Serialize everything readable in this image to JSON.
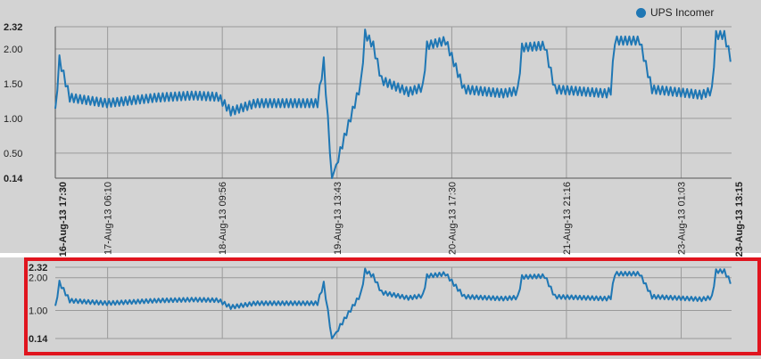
{
  "colors": {
    "series": "#1f77b4",
    "background": "#d3d3d3",
    "gridline": "#9a9a9a",
    "highlight": "#e0141e"
  },
  "legend": {
    "label": "UPS Incomer",
    "icon": "circle-icon"
  },
  "chart_data": [
    {
      "type": "line",
      "title": "",
      "xlabel": "",
      "ylabel": "",
      "ylim": [
        0.14,
        2.32
      ],
      "y_ticks": [
        {
          "value": 0.14,
          "label": "0.14",
          "bold": true
        },
        {
          "value": 0.5,
          "label": "0.50",
          "bold": false
        },
        {
          "value": 1.0,
          "label": "1.00",
          "bold": false
        },
        {
          "value": 1.5,
          "label": "1.50",
          "bold": false
        },
        {
          "value": 2.0,
          "label": "2.00",
          "bold": false
        },
        {
          "value": 2.32,
          "label": "2.32",
          "bold": true
        }
      ],
      "x_ticks": [
        {
          "label": "16-Aug-13 17:30",
          "bold": true
        },
        {
          "label": "17-Aug-13 06:10",
          "bold": false
        },
        {
          "label": "18-Aug-13 09:56",
          "bold": false
        },
        {
          "label": "19-Aug-13 13:43",
          "bold": false
        },
        {
          "label": "20-Aug-13 17:30",
          "bold": false
        },
        {
          "label": "21-Aug-13 21:16",
          "bold": false
        },
        {
          "label": "23-Aug-13 01:03",
          "bold": false
        },
        {
          "label": "23-Aug-13 13:15",
          "bold": true
        }
      ],
      "grid": true,
      "series": [
        {
          "name": "UPS Incomer",
          "points": [
            {
              "x": "16-Aug-13 17:30",
              "y": 1.08
            },
            {
              "x": "16-Aug-13 18:30",
              "y": 1.85
            },
            {
              "x": "16-Aug-13 21:00",
              "y": 1.3
            },
            {
              "x": "17-Aug-13 06:00",
              "y": 1.22
            },
            {
              "x": "17-Aug-13 18:00",
              "y": 1.3
            },
            {
              "x": "18-Aug-13 03:00",
              "y": 1.33
            },
            {
              "x": "18-Aug-13 09:00",
              "y": 1.31
            },
            {
              "x": "18-Aug-13 12:00",
              "y": 1.1
            },
            {
              "x": "18-Aug-13 18:00",
              "y": 1.22
            },
            {
              "x": "19-Aug-13 09:00",
              "y": 1.22
            },
            {
              "x": "19-Aug-13 10:30",
              "y": 1.82
            },
            {
              "x": "19-Aug-13 12:30",
              "y": 0.14
            },
            {
              "x": "19-Aug-13 19:30",
              "y": 1.5
            },
            {
              "x": "19-Aug-13 20:30",
              "y": 2.22
            },
            {
              "x": "19-Aug-13 22:30",
              "y": 2.05
            },
            {
              "x": "20-Aug-13 00:30",
              "y": 1.55
            },
            {
              "x": "20-Aug-13 07:00",
              "y": 1.38
            },
            {
              "x": "20-Aug-13 10:30",
              "y": 1.45
            },
            {
              "x": "20-Aug-13 11:30",
              "y": 2.05
            },
            {
              "x": "20-Aug-13 16:00",
              "y": 2.12
            },
            {
              "x": "20-Aug-13 20:30",
              "y": 1.42
            },
            {
              "x": "21-Aug-13 06:00",
              "y": 1.36
            },
            {
              "x": "21-Aug-13 09:30",
              "y": 1.4
            },
            {
              "x": "21-Aug-13 10:30",
              "y": 2.02
            },
            {
              "x": "21-Aug-13 16:00",
              "y": 2.05
            },
            {
              "x": "21-Aug-13 18:30",
              "y": 1.42
            },
            {
              "x": "22-Aug-13 07:00",
              "y": 1.36
            },
            {
              "x": "22-Aug-13 08:00",
              "y": 1.4
            },
            {
              "x": "22-Aug-13 09:00",
              "y": 2.12
            },
            {
              "x": "22-Aug-13 15:00",
              "y": 2.12
            },
            {
              "x": "22-Aug-13 18:00",
              "y": 1.42
            },
            {
              "x": "23-Aug-13 06:00",
              "y": 1.34
            },
            {
              "x": "23-Aug-13 08:30",
              "y": 1.4
            },
            {
              "x": "23-Aug-13 09:30",
              "y": 2.2
            },
            {
              "x": "23-Aug-13 11:30",
              "y": 2.2
            },
            {
              "x": "23-Aug-13 13:15",
              "y": 1.82
            }
          ]
        }
      ]
    },
    {
      "type": "line",
      "title": "",
      "xlabel": "",
      "ylabel": "",
      "ylim": [
        0.14,
        2.32
      ],
      "y_ticks": [
        {
          "value": 0.14,
          "label": "0.14",
          "bold": true
        },
        {
          "value": 1.0,
          "label": "1.00",
          "bold": false
        },
        {
          "value": 2.0,
          "label": "2.00",
          "bold": false
        },
        {
          "value": 2.32,
          "label": "2.32",
          "bold": true
        }
      ],
      "grid": true,
      "note_series": "overview (navigator) of the same series"
    }
  ]
}
